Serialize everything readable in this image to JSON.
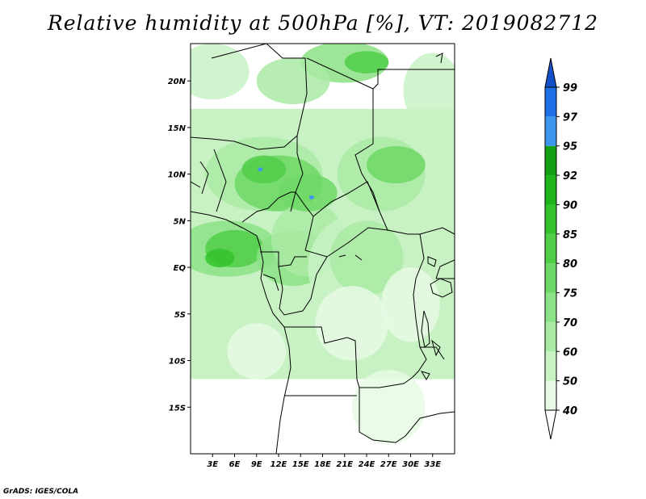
{
  "title": "Relative humidity at 500hPa [%], VT: 2019082712",
  "credit": "GrADS: IGES/COLA",
  "map": {
    "lon_range": [
      0,
      36
    ],
    "lat_range": [
      -20,
      24
    ],
    "lat_ticks": [
      {
        "label": "20N",
        "value": 20
      },
      {
        "label": "15N",
        "value": 15
      },
      {
        "label": "10N",
        "value": 10
      },
      {
        "label": "5N",
        "value": 5
      },
      {
        "label": "EQ",
        "value": 0
      },
      {
        "label": "5S",
        "value": -5
      },
      {
        "label": "10S",
        "value": -10
      },
      {
        "label": "15S",
        "value": -15
      }
    ],
    "lon_ticks": [
      {
        "label": "3E",
        "value": 3
      },
      {
        "label": "6E",
        "value": 6
      },
      {
        "label": "9E",
        "value": 9
      },
      {
        "label": "12E",
        "value": 12
      },
      {
        "label": "15E",
        "value": 15
      },
      {
        "label": "18E",
        "value": 18
      },
      {
        "label": "21E",
        "value": 21
      },
      {
        "label": "24E",
        "value": 24
      },
      {
        "label": "27E",
        "value": 27
      },
      {
        "label": "30E",
        "value": 30
      },
      {
        "label": "33E",
        "value": 33
      }
    ]
  },
  "colorbar": {
    "levels": [
      "40",
      "50",
      "60",
      "70",
      "75",
      "80",
      "85",
      "90",
      "92",
      "95",
      "97",
      "99"
    ],
    "colors": [
      "#ffffff",
      "#e6fae4",
      "#c8f2c4",
      "#aaeaa4",
      "#8ce286",
      "#6ed866",
      "#50ce48",
      "#32c32c",
      "#1eb41a",
      "#14a014",
      "#3c96f0",
      "#1e6ee6",
      "#1450c8"
    ]
  }
}
